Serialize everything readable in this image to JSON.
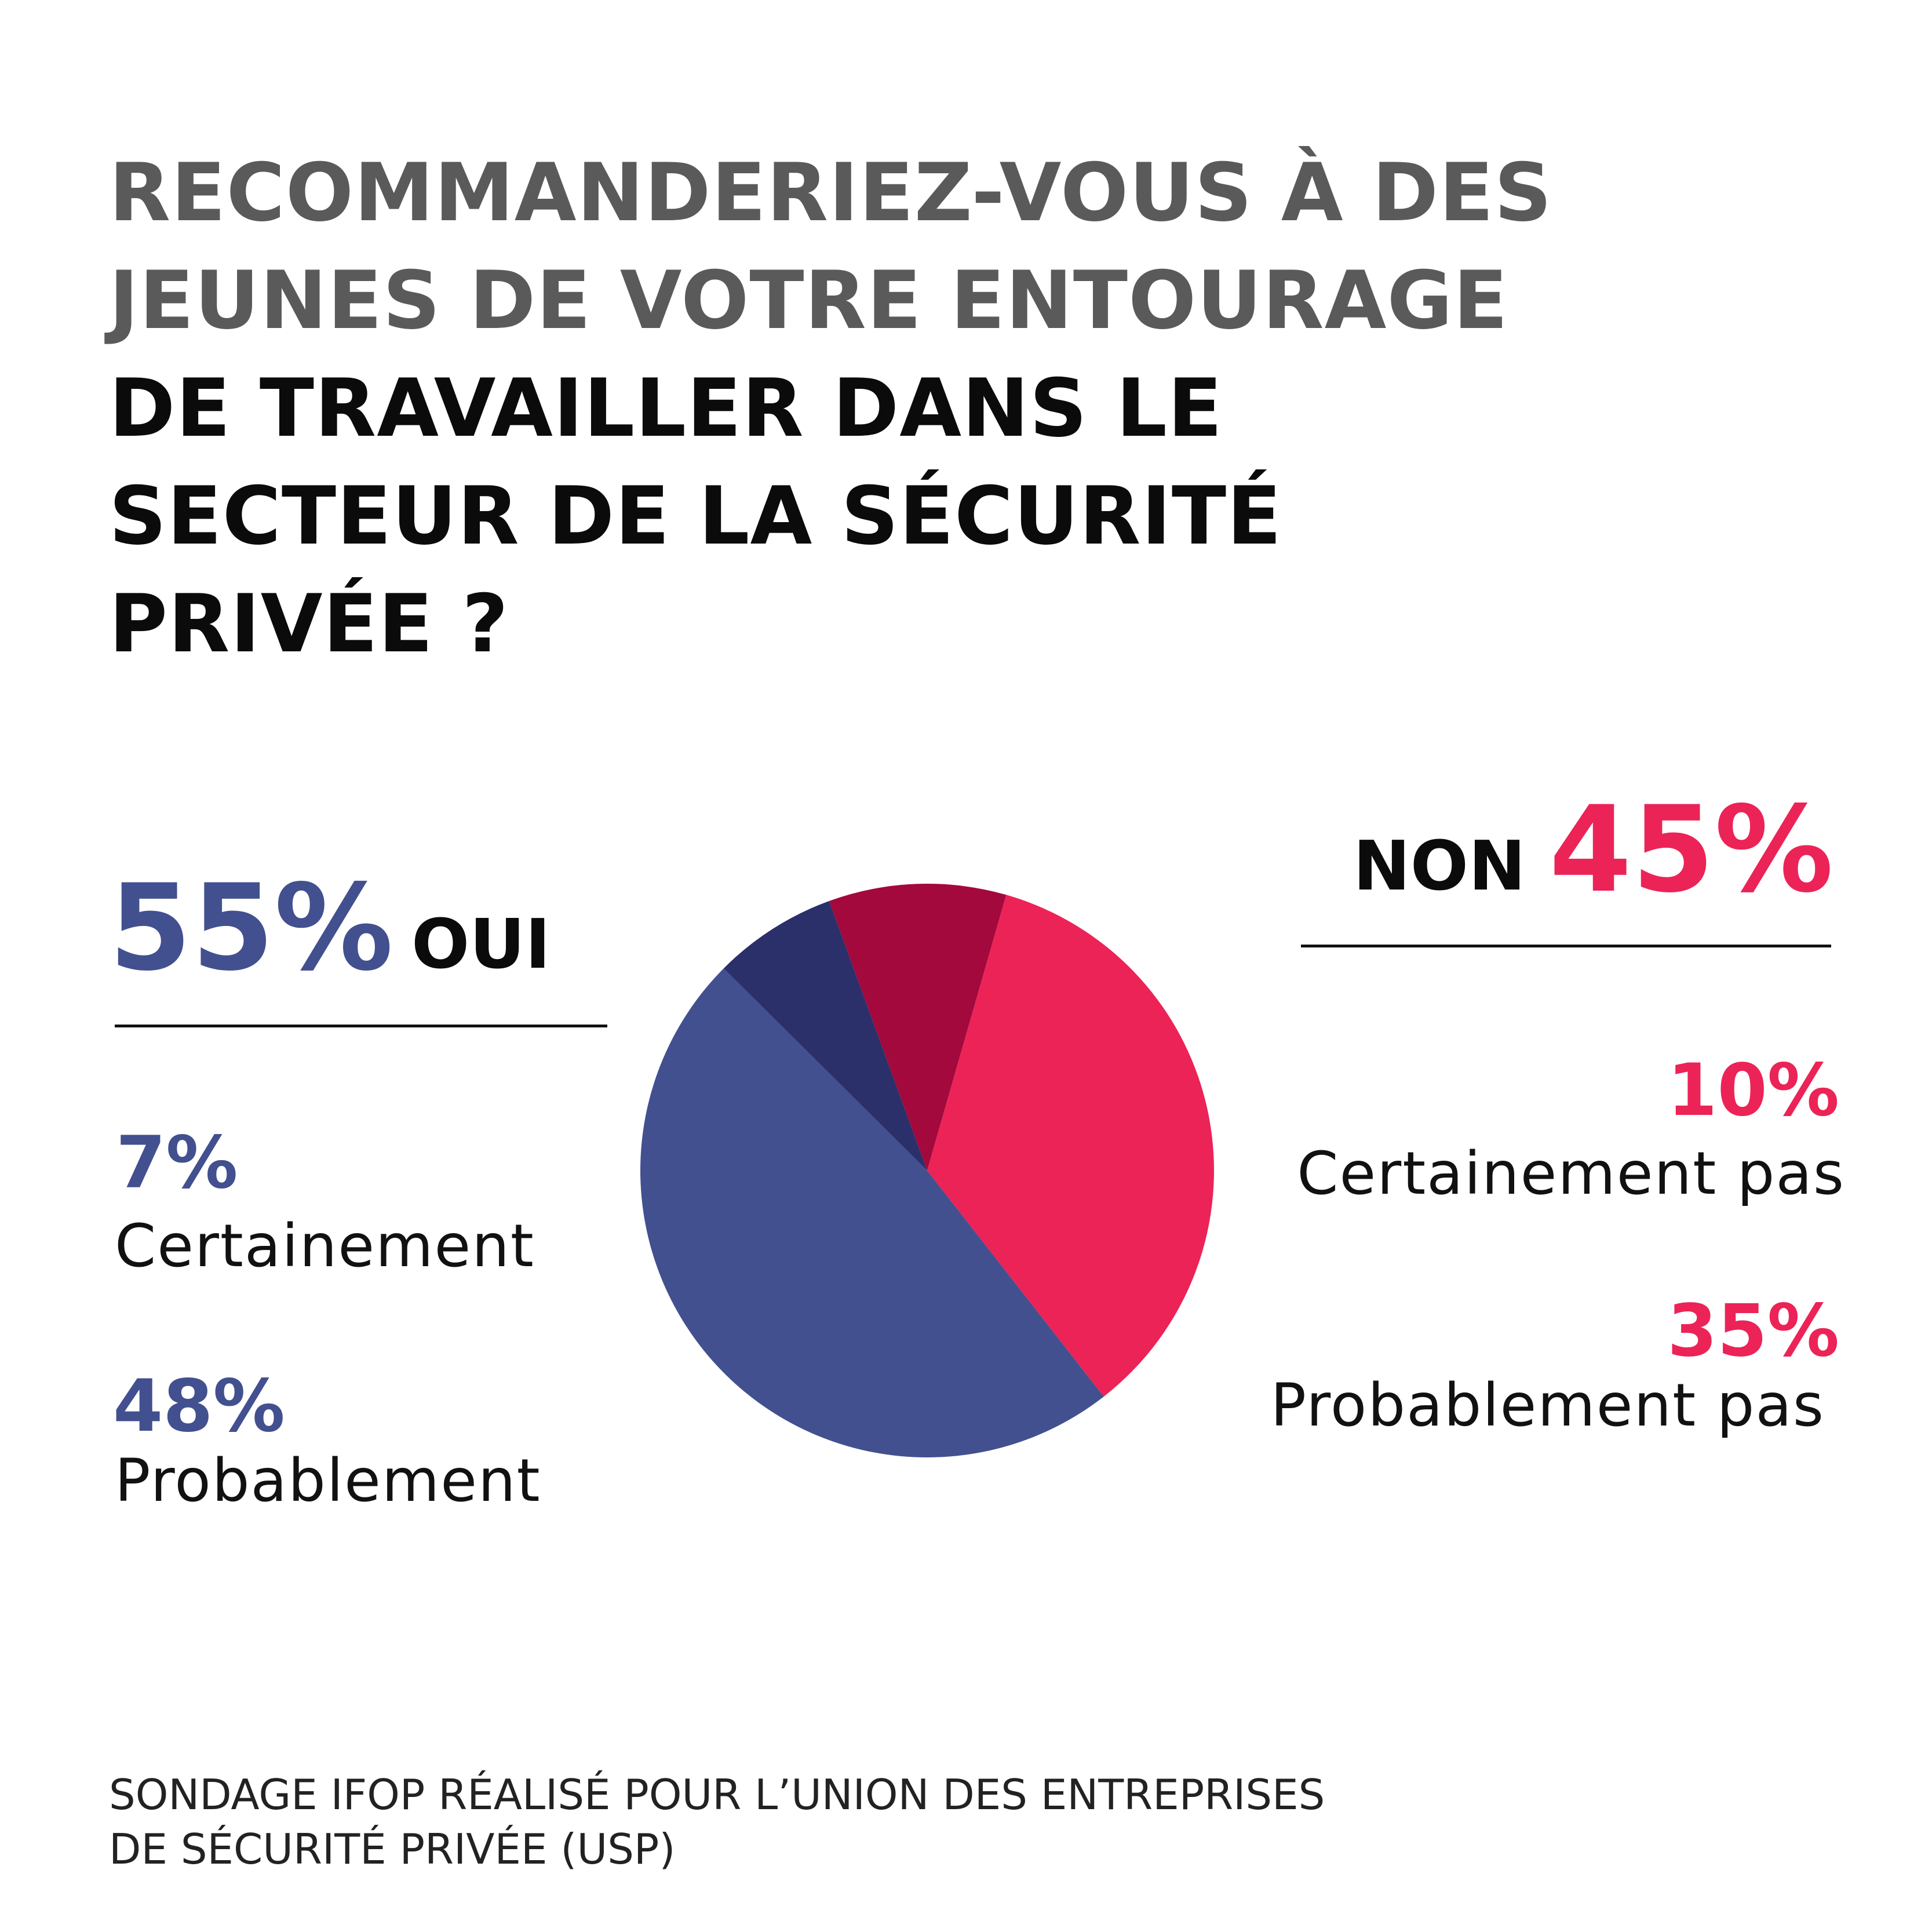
{
  "title": {
    "part1": "RECOMMANDERIEZ-VOUS À DES JEUNES DE VOTRE ENTOURAGE",
    "part2": "DE TRAVAILLER DANS LE SECTEUR DE LA SÉCURITÉ PRIVÉE ?"
  },
  "oui": {
    "total_pct": "55%",
    "total_label": "OUI",
    "certainement_pct": "7%",
    "certainement_label": "Certainement",
    "probablement_pct": "48%",
    "probablement_label": "Probablement"
  },
  "non": {
    "total_label": "NON",
    "total_pct": "45%",
    "certainement_pas_pct": "10%",
    "certainement_pas_label": "Certainement pas",
    "probablement_pas_pct": "35%",
    "probablement_pas_label": "Probablement pas"
  },
  "source": {
    "line1": "SONDAGE IFOP RÉALISÉ POUR L’UNION DES ENTREPRISES",
    "line2": "DE SÉCURITÉ PRIVÉE (USP)"
  },
  "colors": {
    "oui": "#42508f",
    "oui_certainement": "#2b2f6a",
    "non": "#ec2356",
    "non_certainement_pas": "#a3093c",
    "gray_text": "#5a5a5a"
  },
  "chart_data": {
    "type": "pie",
    "title": "RECOMMANDERIEZ-VOUS À DES JEUNES DE VOTRE ENTOURAGE DE TRAVAILLER DANS LE SECTEUR DE LA SÉCURITÉ PRIVÉE ?",
    "slices": [
      {
        "label": "Certainement pas",
        "value": 10,
        "color": "#a3093c"
      },
      {
        "label": "Probablement pas",
        "value": 35,
        "color": "#ec2356"
      },
      {
        "label": "Probablement",
        "value": 48,
        "color": "#42508f"
      },
      {
        "label": "Certainement",
        "value": 7,
        "color": "#2b2f6a"
      }
    ],
    "groups": [
      {
        "label": "OUI",
        "value": 55
      },
      {
        "label": "NON",
        "value": 45
      }
    ]
  }
}
